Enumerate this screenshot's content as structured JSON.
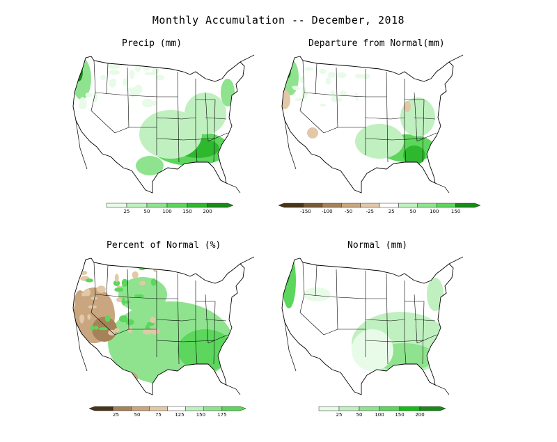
{
  "title": "Monthly Accumulation -- December, 2018",
  "colors": {
    "green_1": "#e8fbe8",
    "green_2": "#c0f0c0",
    "green_3": "#8fe38f",
    "green_4": "#5cd65c",
    "green_5": "#2eb82e",
    "green_6": "#188a18",
    "brown_1": "#e3c8a8",
    "brown_2": "#c9a67f",
    "brown_3": "#a68259",
    "brown_4": "#7a5a36",
    "brown_5": "#4a3418",
    "border": "#000000"
  },
  "panels": [
    {
      "id": "precip",
      "title": "Precip (mm)",
      "colorbar": {
        "type": "sequential",
        "ticks": [
          "25",
          "50",
          "100",
          "150",
          "200"
        ],
        "colors": [
          "#e8fbe8",
          "#c0f0c0",
          "#8fe38f",
          "#5cd65c",
          "#2eb82e",
          "#188a18"
        ]
      }
    },
    {
      "id": "departure",
      "title": "Departure from Normal(mm)",
      "colorbar": {
        "type": "diverging",
        "ticks": [
          "-150",
          "-100",
          "-50",
          "-25",
          "25",
          "50",
          "100",
          "150"
        ],
        "colors": [
          "#4a3418",
          "#7a5a36",
          "#a68259",
          "#c9a67f",
          "#e3c8a8",
          "#ffffff",
          "#c0f0c0",
          "#8fe38f",
          "#5cd65c",
          "#188a18"
        ]
      }
    },
    {
      "id": "percent",
      "title": "Percent of Normal (%)",
      "colorbar": {
        "type": "diverging",
        "ticks": [
          "25",
          "50",
          "75",
          "125",
          "150",
          "175"
        ],
        "colors": [
          "#4a3418",
          "#a68259",
          "#c9a67f",
          "#e3c8a8",
          "#ffffff",
          "#c0f0c0",
          "#8fe38f",
          "#5cd65c"
        ]
      }
    },
    {
      "id": "normal",
      "title": "Normal (mm)",
      "colorbar": {
        "type": "sequential",
        "ticks": [
          "25",
          "50",
          "100",
          "150",
          "200"
        ],
        "colors": [
          "#e8fbe8",
          "#c0f0c0",
          "#8fe38f",
          "#5cd65c",
          "#11c011",
          "#188a18"
        ]
      }
    }
  ]
}
